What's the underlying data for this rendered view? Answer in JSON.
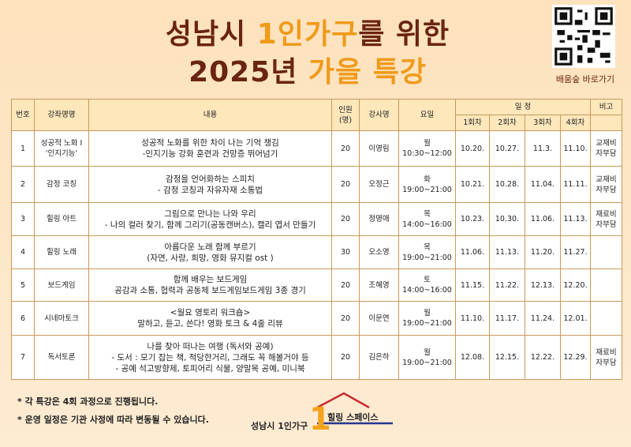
{
  "header": {
    "title": {
      "line1": [
        "성남시 ",
        "1인가구",
        "를 위한"
      ],
      "line2": [
        "2025년 ",
        "가을 특강"
      ]
    },
    "qr_label": "배움숲 바로가기"
  },
  "table": {
    "headers": {
      "no": "번호",
      "name": "강좌명명",
      "content": "내용",
      "capacity": [
        "인원",
        "(명)"
      ],
      "instructor": "강사명",
      "day": "요일",
      "schedule": "일 정",
      "sessions": [
        "1회차",
        "2회차",
        "3회차",
        "4회차"
      ],
      "note": "비고"
    },
    "rows": [
      {
        "no": "1",
        "name": [
          "성공적 노화 I",
          "'인지기능'"
        ],
        "content": [
          "성공적 노화를 위한 차이 나는 기억 챙김",
          "-인지기능 강화 훈련과 건망증 뛰어넘기"
        ],
        "capacity": "20",
        "instructor": "이영림",
        "day": "월",
        "time": "10:30~12:00",
        "dates": [
          "10.20.",
          "10.27.",
          "11.3.",
          "11.10."
        ],
        "note": [
          "교재비",
          "자부담"
        ]
      },
      {
        "no": "2",
        "name": [
          "감정 코칭"
        ],
        "content": [
          "감정을 언어화하는 스피치",
          "- 감정 코칭과 자유자재 소통법"
        ],
        "capacity": "20",
        "instructor": "오정근",
        "day": "화",
        "time": "19:00~21:00",
        "dates": [
          "10.21.",
          "10.28.",
          "11.04.",
          "11.11."
        ],
        "note": [
          "교재비",
          "자부담"
        ]
      },
      {
        "no": "3",
        "name": [
          "힐링 아트"
        ],
        "content": [
          "그림으로 만나는 나와 우리",
          "- 나의 컬러 찾기, 함께 그리기(공동캔버스), 캘리 엽서 만들기"
        ],
        "capacity": "20",
        "instructor": "정명애",
        "day": "목",
        "time": "14:00~16:00",
        "dates": [
          "10.23.",
          "10.30.",
          "11.06.",
          "11.13."
        ],
        "note": [
          "재료비",
          "자부담"
        ]
      },
      {
        "no": "4",
        "name": [
          "힐링 노래"
        ],
        "content": [
          "아름다운 노래 함께 부르기",
          "(자연, 사랑, 희망, 영화 뮤지컬 ost )"
        ],
        "capacity": "30",
        "instructor": "오소영",
        "day": "목",
        "time": "19:00~21:00",
        "dates": [
          "11.06.",
          "11.13.",
          "11.20.",
          "11.27."
        ]
      },
      {
        "no": "5",
        "name": [
          "보드게임"
        ],
        "content": [
          "함께 배우는 보드게임",
          "공감과 소통, 협력과 공동체 보드게임보드게임 3종 경기"
        ],
        "capacity": "20",
        "instructor": "조혜영",
        "day": "토",
        "time": "14:00~16:00",
        "dates": [
          "11.15.",
          "11.22.",
          "12.13.",
          "12.20."
        ]
      },
      {
        "no": "6",
        "name": [
          "시네마토크"
        ],
        "content": [
          "<월요 영토리 워크숍>",
          "말하고, 듣고, 쓴다! 영화 토크 & 4줄 리뷰"
        ],
        "capacity": "20",
        "instructor": "이문연",
        "day": "월",
        "time": "19:00~21:00",
        "dates": [
          "11.10.",
          "11.17.",
          "11.24.",
          "12.01."
        ]
      },
      {
        "no": "7",
        "name": [
          "독서토론"
        ],
        "content": [
          "나를 찾아 떠나는 여행 (독서와 공예)",
          "- 도서 : 모기 잡는 책, 적당한거리, 그래도 꼭 해볼거야 등",
          "- 공예 석고방향제, 토피어리 식물, 양말목 공예, 미니북"
        ],
        "capacity": "20",
        "instructor": "김은하",
        "day": "월",
        "time": "19:00~21:00",
        "dates": [
          "12.08.",
          "12.15.",
          "12.22.",
          "12.29."
        ],
        "note": [
          "재료비",
          "자부담"
        ]
      }
    ]
  },
  "notes": [
    "* 각 특강은 4회 과정으로 진행됩니다.",
    "* 운영 일정은 기관 사정에 따라 변동될 수 있습니다."
  ],
  "logo": {
    "left": "성남시 1인가구",
    "right": "힐링 스페이스"
  }
}
